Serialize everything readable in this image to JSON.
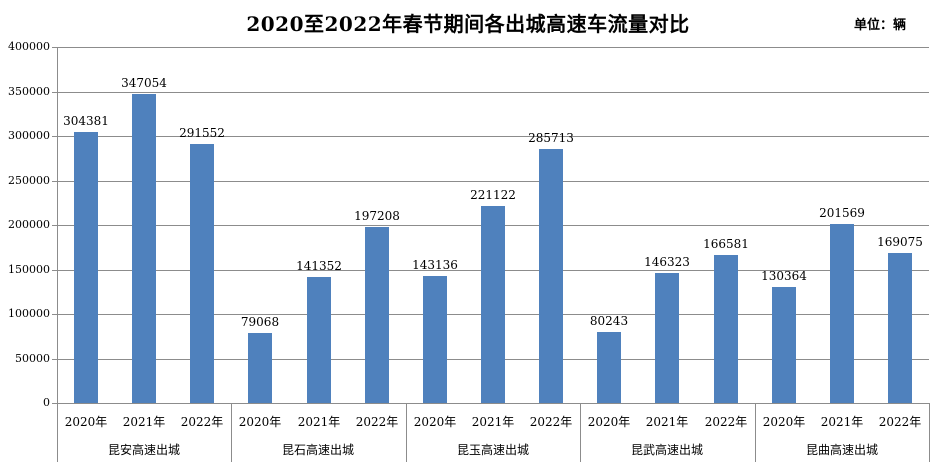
{
  "chart_data": {
    "type": "bar",
    "title": "2020至2022年春节期间各出城高速车流量对比",
    "unit_label": "单位：辆",
    "year_labels": [
      "2020年",
      "2021年",
      "2022年"
    ],
    "groups": [
      {
        "label": "昆安高速出城",
        "values": [
          304381,
          347054,
          291552
        ]
      },
      {
        "label": "昆石高速出城",
        "values": [
          79068,
          141352,
          197208
        ]
      },
      {
        "label": "昆玉高速出城",
        "values": [
          143136,
          221122,
          285713
        ]
      },
      {
        "label": "昆武高速出城",
        "values": [
          80243,
          146323,
          166581
        ]
      },
      {
        "label": "昆曲高速出城",
        "values": [
          130364,
          201569,
          169075
        ]
      }
    ],
    "y_axis": {
      "min": 0,
      "max": 400000,
      "step": 50000,
      "tick_labels": [
        "0",
        "50000",
        "100000",
        "150000",
        "200000",
        "250000",
        "300000",
        "350000",
        "400000"
      ]
    },
    "layout_hints": {
      "grid": true,
      "legend": false,
      "data_labels": true,
      "multi_level_category_axis": true
    },
    "colors": {
      "bar": "#4F81BD",
      "gridline": "#8C8C8C",
      "axis": "#8C8C8C",
      "text": "#000000",
      "background": "#FFFFFF"
    }
  }
}
